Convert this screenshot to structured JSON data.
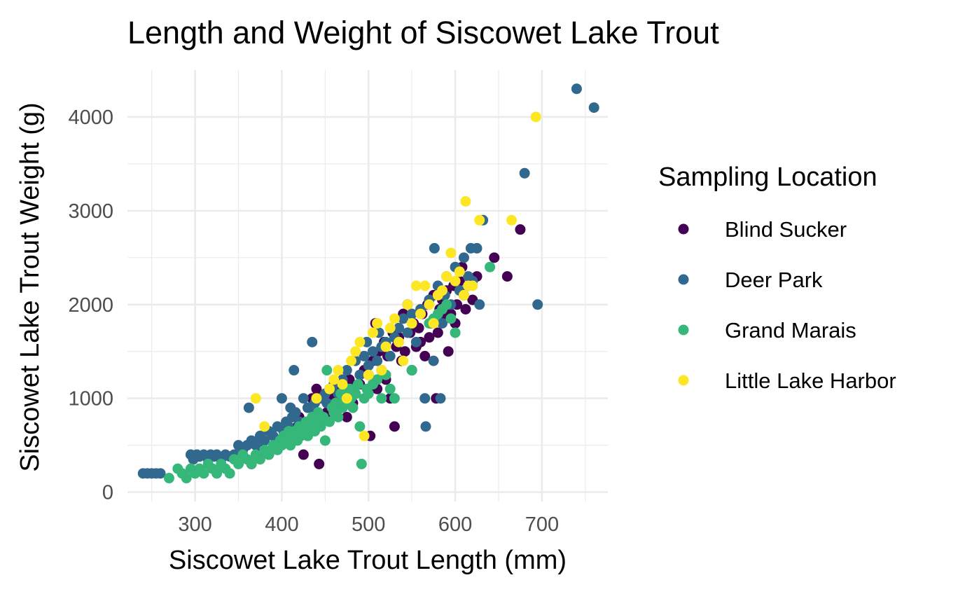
{
  "chart_data": {
    "type": "scatter",
    "title": "Length and Weight of Siscowet Lake Trout",
    "xlabel": "Siscowet Lake Trout Length (mm)",
    "ylabel": "Siscowet Lake Trout Weight (g)",
    "xlim": [
      222,
      776
    ],
    "ylim": [
      -100,
      4500
    ],
    "x_ticks": [
      300,
      400,
      500,
      600,
      700
    ],
    "y_ticks": [
      0,
      1000,
      2000,
      3000,
      4000
    ],
    "grid": true,
    "legend": {
      "title": "Sampling Location",
      "placement": "right"
    },
    "series": [
      {
        "name": "Blind Sucker",
        "color": "#440154",
        "points": [
          [
            365,
            300
          ],
          [
            378,
            450
          ],
          [
            385,
            400
          ],
          [
            392,
            500
          ],
          [
            398,
            550
          ],
          [
            405,
            600
          ],
          [
            412,
            650
          ],
          [
            418,
            700
          ],
          [
            420,
            800
          ],
          [
            425,
            400
          ],
          [
            430,
            900
          ],
          [
            435,
            1000
          ],
          [
            440,
            1100
          ],
          [
            443,
            300
          ],
          [
            446,
            750
          ],
          [
            452,
            850
          ],
          [
            455,
            950
          ],
          [
            460,
            1000
          ],
          [
            465,
            1100
          ],
          [
            470,
            900
          ],
          [
            475,
            800
          ],
          [
            478,
            1200
          ],
          [
            482,
            950
          ],
          [
            485,
            1050
          ],
          [
            490,
            1150
          ],
          [
            495,
            1300
          ],
          [
            500,
            1250
          ],
          [
            502,
            600
          ],
          [
            505,
            1400
          ],
          [
            508,
            1800
          ],
          [
            510,
            1100
          ],
          [
            512,
            1500
          ],
          [
            515,
            1300
          ],
          [
            518,
            1600
          ],
          [
            520,
            1200
          ],
          [
            522,
            1450
          ],
          [
            525,
            1000
          ],
          [
            528,
            1700
          ],
          [
            530,
            700
          ],
          [
            532,
            1550
          ],
          [
            535,
            1650
          ],
          [
            538,
            1400
          ],
          [
            540,
            1900
          ],
          [
            542,
            1500
          ],
          [
            545,
            2000
          ],
          [
            548,
            1700
          ],
          [
            550,
            1300
          ],
          [
            552,
            1800
          ],
          [
            555,
            1550
          ],
          [
            558,
            1750
          ],
          [
            560,
            1600
          ],
          [
            562,
            1900
          ],
          [
            565,
            1450
          ],
          [
            568,
            2000
          ],
          [
            570,
            1650
          ],
          [
            572,
            1800
          ],
          [
            575,
            2100
          ],
          [
            578,
            1000
          ],
          [
            580,
            1700
          ],
          [
            582,
            1950
          ],
          [
            585,
            2050
          ],
          [
            588,
            1850
          ],
          [
            590,
            2150
          ],
          [
            592,
            1500
          ],
          [
            595,
            1900
          ],
          [
            598,
            2200
          ],
          [
            600,
            1800
          ],
          [
            602,
            2000
          ],
          [
            605,
            2250
          ],
          [
            608,
            2400
          ],
          [
            610,
            2100
          ],
          [
            612,
            1950
          ],
          [
            615,
            2200
          ],
          [
            620,
            2050
          ],
          [
            625,
            2300
          ],
          [
            645,
            2500
          ],
          [
            660,
            2300
          ],
          [
            675,
            2800
          ]
        ]
      },
      {
        "name": "Deer Park",
        "color": "#31688E",
        "points": [
          [
            240,
            200
          ],
          [
            245,
            200
          ],
          [
            250,
            200
          ],
          [
            255,
            200
          ],
          [
            260,
            200
          ],
          [
            295,
            400
          ],
          [
            298,
            350
          ],
          [
            302,
            400
          ],
          [
            305,
            380
          ],
          [
            310,
            400
          ],
          [
            315,
            350
          ],
          [
            318,
            400
          ],
          [
            322,
            380
          ],
          [
            325,
            400
          ],
          [
            330,
            350
          ],
          [
            335,
            400
          ],
          [
            340,
            380
          ],
          [
            345,
            400
          ],
          [
            350,
            500
          ],
          [
            355,
            450
          ],
          [
            360,
            500
          ],
          [
            362,
            900
          ],
          [
            365,
            550
          ],
          [
            370,
            500
          ],
          [
            375,
            600
          ],
          [
            380,
            550
          ],
          [
            385,
            650
          ],
          [
            390,
            600
          ],
          [
            395,
            700
          ],
          [
            400,
            1000
          ],
          [
            402,
            650
          ],
          [
            405,
            750
          ],
          [
            408,
            700
          ],
          [
            410,
            900
          ],
          [
            412,
            800
          ],
          [
            414,
            1300
          ],
          [
            416,
            850
          ],
          [
            420,
            750
          ],
          [
            425,
            1000
          ],
          [
            430,
            900
          ],
          [
            435,
            1600
          ],
          [
            438,
            950
          ],
          [
            440,
            850
          ],
          [
            445,
            1000
          ],
          [
            450,
            1050
          ],
          [
            452,
            950
          ],
          [
            455,
            1100
          ],
          [
            460,
            1150
          ],
          [
            465,
            1050
          ],
          [
            470,
            1200
          ],
          [
            475,
            1300
          ],
          [
            480,
            1100
          ],
          [
            485,
            1400
          ],
          [
            490,
            1250
          ],
          [
            495,
            1450
          ],
          [
            498,
            1600
          ],
          [
            500,
            1350
          ],
          [
            505,
            1500
          ],
          [
            510,
            1400
          ],
          [
            512,
            1700
          ],
          [
            515,
            1550
          ],
          [
            520,
            1600
          ],
          [
            525,
            1450
          ],
          [
            530,
            1650
          ],
          [
            535,
            1750
          ],
          [
            540,
            1850
          ],
          [
            545,
            1700
          ],
          [
            550,
            1900
          ],
          [
            555,
            1600
          ],
          [
            560,
            1950
          ],
          [
            565,
            1000
          ],
          [
            566,
            700
          ],
          [
            570,
            2050
          ],
          [
            575,
            1400
          ],
          [
            576,
            2600
          ],
          [
            580,
            2200
          ],
          [
            583,
            1000
          ],
          [
            585,
            1800
          ],
          [
            588,
            2100
          ],
          [
            590,
            2300
          ],
          [
            595,
            2000
          ],
          [
            600,
            2400
          ],
          [
            605,
            2150
          ],
          [
            610,
            2500
          ],
          [
            615,
            2300
          ],
          [
            618,
            2600
          ],
          [
            620,
            2250
          ],
          [
            625,
            2600
          ],
          [
            628,
            2000
          ],
          [
            632,
            2900
          ],
          [
            680,
            3400
          ],
          [
            695,
            2000
          ],
          [
            740,
            4300
          ],
          [
            760,
            4100
          ]
        ]
      },
      {
        "name": "Grand Marais",
        "color": "#35B779",
        "points": [
          [
            270,
            150
          ],
          [
            280,
            250
          ],
          [
            285,
            200
          ],
          [
            290,
            150
          ],
          [
            295,
            250
          ],
          [
            300,
            200
          ],
          [
            305,
            250
          ],
          [
            310,
            200
          ],
          [
            315,
            300
          ],
          [
            320,
            250
          ],
          [
            325,
            200
          ],
          [
            330,
            300
          ],
          [
            335,
            250
          ],
          [
            340,
            200
          ],
          [
            345,
            350
          ],
          [
            350,
            300
          ],
          [
            355,
            400
          ],
          [
            360,
            350
          ],
          [
            365,
            300
          ],
          [
            370,
            400
          ],
          [
            375,
            350
          ],
          [
            380,
            450
          ],
          [
            385,
            400
          ],
          [
            390,
            500
          ],
          [
            395,
            450
          ],
          [
            398,
            550
          ],
          [
            400,
            500
          ],
          [
            402,
            600
          ],
          [
            405,
            550
          ],
          [
            408,
            650
          ],
          [
            410,
            500
          ],
          [
            412,
            600
          ],
          [
            415,
            650
          ],
          [
            418,
            550
          ],
          [
            420,
            700
          ],
          [
            422,
            600
          ],
          [
            425,
            650
          ],
          [
            428,
            750
          ],
          [
            430,
            600
          ],
          [
            432,
            700
          ],
          [
            435,
            800
          ],
          [
            438,
            650
          ],
          [
            440,
            750
          ],
          [
            442,
            850
          ],
          [
            445,
            700
          ],
          [
            448,
            800
          ],
          [
            450,
            550
          ],
          [
            452,
            1300
          ],
          [
            455,
            750
          ],
          [
            458,
            900
          ],
          [
            460,
            850
          ],
          [
            462,
            950
          ],
          [
            465,
            800
          ],
          [
            468,
            1050
          ],
          [
            470,
            900
          ],
          [
            472,
            1000
          ],
          [
            475,
            950
          ],
          [
            478,
            1100
          ],
          [
            480,
            1000
          ],
          [
            482,
            900
          ],
          [
            485,
            1050
          ],
          [
            488,
            1150
          ],
          [
            490,
            700
          ],
          [
            492,
            300
          ],
          [
            495,
            1000
          ],
          [
            498,
            1100
          ],
          [
            500,
            1050
          ],
          [
            505,
            1150
          ],
          [
            510,
            1200
          ],
          [
            515,
            1000
          ],
          [
            520,
            1250
          ],
          [
            525,
            1100
          ],
          [
            530,
            1000
          ],
          [
            550,
            1300
          ],
          [
            570,
            1800
          ],
          [
            575,
            1850
          ],
          [
            580,
            1900
          ],
          [
            585,
            1950
          ],
          [
            590,
            2000
          ],
          [
            595,
            1850
          ],
          [
            600,
            1700
          ],
          [
            640,
            2400
          ]
        ]
      },
      {
        "name": "Little Lake Harbor",
        "color": "#FDE725",
        "points": [
          [
            370,
            1000
          ],
          [
            380,
            700
          ],
          [
            440,
            1000
          ],
          [
            455,
            1100
          ],
          [
            460,
            1200
          ],
          [
            465,
            1300
          ],
          [
            470,
            1150
          ],
          [
            475,
            1000
          ],
          [
            480,
            1400
          ],
          [
            485,
            1500
          ],
          [
            490,
            1600
          ],
          [
            495,
            600
          ],
          [
            500,
            1250
          ],
          [
            505,
            1700
          ],
          [
            510,
            1800
          ],
          [
            515,
            1300
          ],
          [
            520,
            1550
          ],
          [
            525,
            1750
          ],
          [
            530,
            1850
          ],
          [
            535,
            1600
          ],
          [
            540,
            1400
          ],
          [
            545,
            2000
          ],
          [
            550,
            1800
          ],
          [
            555,
            2200
          ],
          [
            560,
            1900
          ],
          [
            565,
            2200
          ],
          [
            570,
            2000
          ],
          [
            575,
            1800
          ],
          [
            580,
            2100
          ],
          [
            585,
            2150
          ],
          [
            590,
            2300
          ],
          [
            595,
            2550
          ],
          [
            600,
            2250
          ],
          [
            605,
            2350
          ],
          [
            610,
            2100
          ],
          [
            612,
            3100
          ],
          [
            615,
            2200
          ],
          [
            620,
            2200
          ],
          [
            628,
            2900
          ],
          [
            665,
            2900
          ],
          [
            693,
            4000
          ]
        ]
      }
    ]
  }
}
